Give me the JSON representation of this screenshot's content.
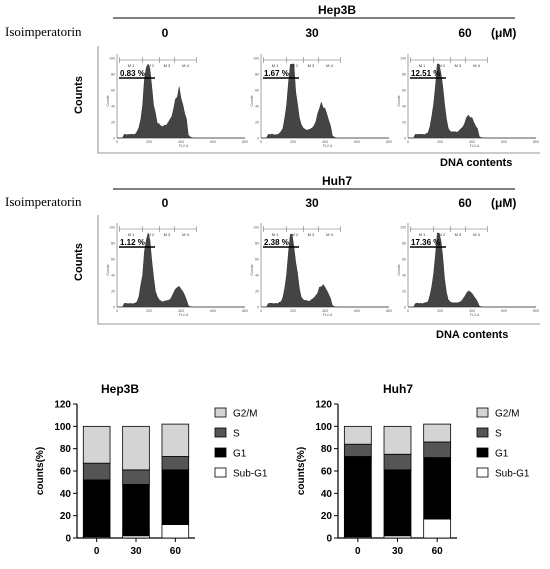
{
  "flow": {
    "compound_label": "Isoimperatorin",
    "unit_label": "(μM)",
    "xaxis_label": "DNA contents",
    "yaxis_label": "Counts",
    "doses": [
      "0",
      "30",
      "60"
    ],
    "gate_labels": [
      "M 1",
      "M 2",
      "M 3",
      "M 4"
    ],
    "hist_xlabel": "FL2-A",
    "hist_xticks": [
      "0",
      "200",
      "400",
      "600",
      "800"
    ],
    "hist_yticks": [
      "0",
      "20",
      "40",
      "60",
      "80",
      "100"
    ],
    "panels": [
      {
        "cell_line": "Hep3B",
        "subg1": [
          "0.83 %",
          "1.67 %",
          "12.51 %"
        ]
      },
      {
        "cell_line": "Huh7",
        "subg1": [
          "1.12 %",
          "2.38 %",
          "17.36 %"
        ]
      }
    ]
  },
  "chart_data": [
    {
      "type": "bar",
      "stacked": true,
      "title": "Hep3B",
      "xlabel": "",
      "ylabel": "counts(%)",
      "categories": [
        "0",
        "30",
        "60"
      ],
      "ylim": [
        0,
        120
      ],
      "yticks": [
        "0",
        "20",
        "40",
        "60",
        "80",
        "100",
        "120"
      ],
      "legend_position": "right",
      "series": [
        {
          "name": "Sub-G1",
          "values": [
            1,
            2,
            12
          ],
          "color": "#ffffff"
        },
        {
          "name": "G1",
          "values": [
            51,
            46,
            49
          ],
          "color": "#000000"
        },
        {
          "name": "S",
          "values": [
            15,
            13,
            12
          ],
          "color": "#555555"
        },
        {
          "name": "G2/M",
          "values": [
            33,
            39,
            29
          ],
          "color": "#d4d4d4"
        }
      ]
    },
    {
      "type": "bar",
      "stacked": true,
      "title": "Huh7",
      "xlabel": "",
      "ylabel": "counts(%)",
      "categories": [
        "0",
        "30",
        "60"
      ],
      "ylim": [
        0,
        120
      ],
      "yticks": [
        "0",
        "20",
        "40",
        "60",
        "80",
        "100",
        "120"
      ],
      "legend_position": "right",
      "series": [
        {
          "name": "Sub-G1",
          "values": [
            1,
            2,
            17
          ],
          "color": "#ffffff"
        },
        {
          "name": "G1",
          "values": [
            72,
            59,
            55
          ],
          "color": "#000000"
        },
        {
          "name": "S",
          "values": [
            11,
            14,
            14
          ],
          "color": "#555555"
        },
        {
          "name": "G2/M",
          "values": [
            16,
            25,
            16
          ],
          "color": "#d4d4d4"
        }
      ]
    }
  ]
}
